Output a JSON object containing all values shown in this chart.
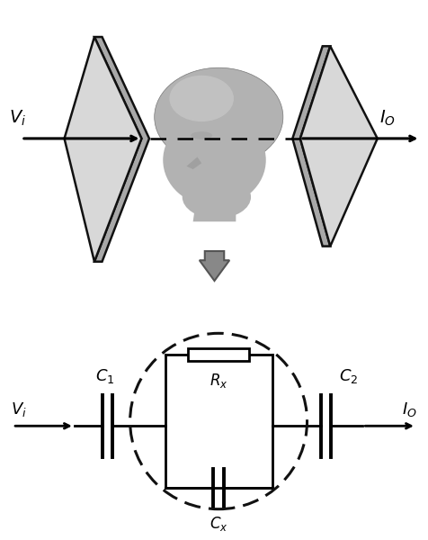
{
  "bg_color": "#ffffff",
  "figsize": [
    4.77,
    6.0
  ],
  "dpi": 100,
  "plate_face_light": "#d8d8d8",
  "plate_face_dark": "#a8a8a8",
  "plate_edge": "#111111",
  "head_base": "#b2b2b2",
  "head_light": "#cccccc",
  "head_edge": "#777777",
  "wire_color": "#000000",
  "gray_arrow_face": "#888888",
  "gray_arrow_edge": "#555555",
  "dashed_color": "#111111",
  "resistor_face": "#ffffff",
  "resistor_edge": "#000000"
}
